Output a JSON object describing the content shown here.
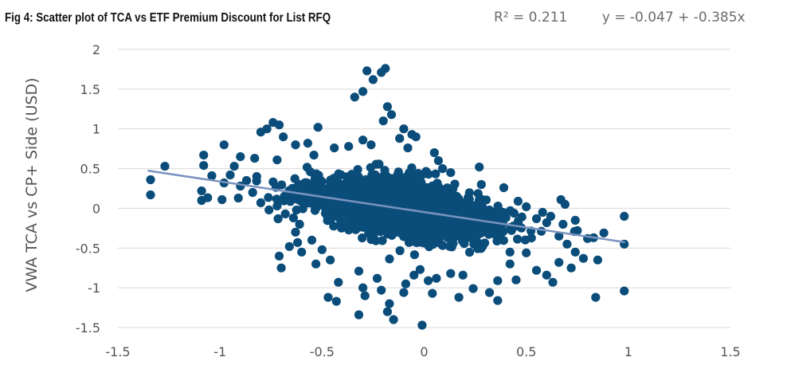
{
  "figure": {
    "title": "Fig 4: Scatter plot of TCA vs ETF Premium Discount for List RFQ",
    "r_squared_text": "R² = 0.211",
    "equation_text": "y = -0.047 + -0.385x"
  },
  "chart_data": {
    "type": "scatter",
    "title": "Fig 4: Scatter plot of TCA vs ETF Premium Discount for List RFQ",
    "xlabel": "",
    "ylabel": "VWA TCA vs CP+ Side (USD)",
    "xlim": [
      -1.5,
      1.5
    ],
    "ylim": [
      -1.5,
      2
    ],
    "x_ticks": [
      "-1.5",
      "-1",
      "-0.5",
      "0",
      "0.5",
      "1",
      "1.5"
    ],
    "y_ticks": [
      "2",
      "1.5",
      "1",
      "0.5",
      "0",
      "-0.5",
      "-1",
      "-1.5"
    ],
    "grid": "horizontal",
    "legend": "none",
    "colors": {
      "points": "#0b4d7a",
      "trendline": "#7a93c0",
      "grid": "#d9d9d9"
    },
    "trendline": {
      "intercept": -0.047,
      "slope": -0.385,
      "x_range": [
        -1.35,
        0.98
      ],
      "r_squared": 0.211
    },
    "points": [
      [
        -0.19,
        1.76
      ],
      [
        -0.21,
        1.71
      ],
      [
        -0.28,
        1.73
      ],
      [
        -0.25,
        1.62
      ],
      [
        -0.34,
        1.4
      ],
      [
        -0.3,
        1.47
      ],
      [
        -0.18,
        1.28
      ],
      [
        -0.16,
        1.18
      ],
      [
        -0.2,
        1.1
      ],
      [
        -0.1,
        1.0
      ],
      [
        -0.06,
        0.93
      ],
      [
        -0.04,
        0.9
      ],
      [
        -0.12,
        0.88
      ],
      [
        -0.52,
        1.02
      ],
      [
        -0.74,
        1.08
      ],
      [
        -0.71,
        1.05
      ],
      [
        -0.77,
        1.0
      ],
      [
        -0.8,
        0.96
      ],
      [
        -0.69,
        0.9
      ],
      [
        -0.57,
        0.82
      ],
      [
        -0.63,
        0.8
      ],
      [
        -0.98,
        0.8
      ],
      [
        -0.9,
        0.65
      ],
      [
        -0.83,
        0.63
      ],
      [
        -0.72,
        0.61
      ],
      [
        -0.54,
        0.67
      ],
      [
        -0.44,
        0.76
      ],
      [
        -0.37,
        0.78
      ],
      [
        -0.3,
        0.86
      ],
      [
        -0.26,
        0.8
      ],
      [
        -0.08,
        0.76
      ],
      [
        0.05,
        0.7
      ],
      [
        0.07,
        0.6
      ],
      [
        0.09,
        0.5
      ],
      [
        0.13,
        0.45
      ],
      [
        0.27,
        0.52
      ],
      [
        0.28,
        0.3
      ],
      [
        0.39,
        0.26
      ],
      [
        -1.34,
        0.36
      ],
      [
        -1.34,
        0.17
      ],
      [
        -1.27,
        0.53
      ],
      [
        -1.08,
        0.67
      ],
      [
        -1.08,
        0.54
      ],
      [
        -1.04,
        0.41
      ],
      [
        -1.09,
        0.22
      ],
      [
        -1.09,
        0.1
      ],
      [
        -0.99,
        0.11
      ],
      [
        -0.98,
        0.32
      ],
      [
        -0.93,
        0.53
      ],
      [
        -0.95,
        0.42
      ],
      [
        -0.9,
        0.28
      ],
      [
        -0.91,
        0.13
      ],
      [
        -0.87,
        0.35
      ],
      [
        -0.84,
        0.2
      ],
      [
        -0.82,
        0.4
      ],
      [
        -0.8,
        0.07
      ],
      [
        -0.76,
        -0.02
      ],
      [
        -0.72,
        0.03
      ],
      [
        -0.68,
        -0.07
      ],
      [
        -0.64,
        -0.12
      ],
      [
        -0.61,
        -0.2
      ],
      [
        -0.63,
        -0.3
      ],
      [
        -0.62,
        -0.43
      ],
      [
        -0.66,
        -0.48
      ],
      [
        -0.6,
        -0.55
      ],
      [
        -0.7,
        -0.75
      ],
      [
        -0.71,
        -0.6
      ],
      [
        -0.55,
        -0.4
      ],
      [
        -0.5,
        -0.52
      ],
      [
        -0.46,
        -0.65
      ],
      [
        -0.53,
        -0.7
      ],
      [
        -0.42,
        -0.93
      ],
      [
        -0.47,
        -1.12
      ],
      [
        -0.43,
        -1.17
      ],
      [
        -0.32,
        -0.79
      ],
      [
        -0.3,
        -1.0
      ],
      [
        -0.29,
        -1.1
      ],
      [
        -0.32,
        -1.34
      ],
      [
        -0.23,
        -0.88
      ],
      [
        -0.21,
        -1.03
      ],
      [
        -0.17,
        -1.2
      ],
      [
        -0.18,
        -1.3
      ],
      [
        -0.15,
        -1.4
      ],
      [
        -0.1,
        -1.06
      ],
      [
        -0.09,
        -0.95
      ],
      [
        -0.05,
        -0.84
      ],
      [
        -0.02,
        -0.77
      ],
      [
        -0.01,
        -1.47
      ],
      [
        0.02,
        -0.91
      ],
      [
        0.04,
        -1.07
      ],
      [
        0.06,
        -0.88
      ],
      [
        0.13,
        -0.82
      ],
      [
        0.19,
        -0.84
      ],
      [
        0.17,
        -1.12
      ],
      [
        0.24,
        -1.01
      ],
      [
        0.36,
        -0.91
      ],
      [
        0.32,
        -1.06
      ],
      [
        0.36,
        -1.16
      ],
      [
        0.42,
        -0.7
      ],
      [
        0.45,
        -0.9
      ],
      [
        0.5,
        -0.56
      ],
      [
        0.55,
        -0.78
      ],
      [
        0.6,
        -0.84
      ],
      [
        0.63,
        -0.93
      ],
      [
        0.66,
        -0.68
      ],
      [
        0.72,
        -0.75
      ],
      [
        0.78,
        -0.63
      ],
      [
        0.85,
        -0.65
      ],
      [
        0.74,
        -0.55
      ],
      [
        0.7,
        -0.45
      ],
      [
        0.66,
        -0.35
      ],
      [
        0.75,
        -0.28
      ],
      [
        0.8,
        -0.38
      ],
      [
        0.68,
        -0.2
      ],
      [
        0.62,
        -0.1
      ],
      [
        0.69,
        0.05
      ],
      [
        0.74,
        -0.15
      ],
      [
        0.67,
        0.11
      ],
      [
        0.98,
        -0.1
      ],
      [
        0.98,
        -0.45
      ],
      [
        0.98,
        -1.04
      ],
      [
        0.88,
        -0.31
      ],
      [
        0.84,
        -1.12
      ],
      [
        0.83,
        -0.37
      ],
      [
        0.46,
        0.09
      ],
      [
        0.5,
        0.02
      ],
      [
        0.55,
        -0.13
      ],
      [
        0.58,
        -0.05
      ],
      [
        0.6,
        -0.18
      ],
      [
        0.36,
        -0.4
      ],
      [
        0.42,
        -0.55
      ]
    ],
    "cluster": {
      "count": 2200,
      "seed": 7,
      "x_sd": 0.22,
      "noise_sd": 0.18,
      "x_range": [
        -1.2,
        0.95
      ],
      "y_range": [
        -1.45,
        0.95
      ]
    }
  }
}
